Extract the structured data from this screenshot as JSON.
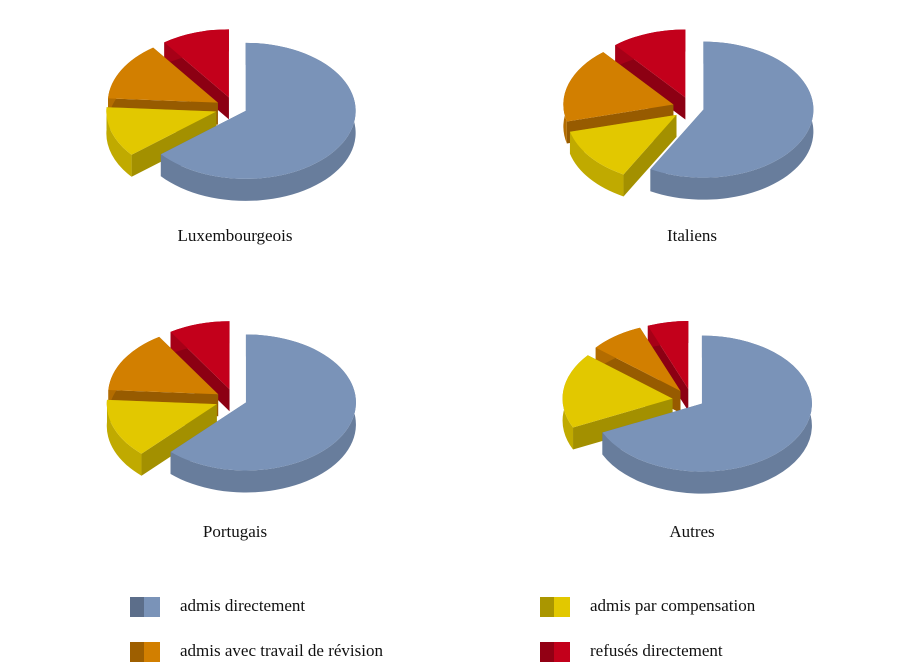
{
  "chart_data": {
    "type": "pie",
    "categories": [
      "admis directement",
      "admis par compensation",
      "admis avec travail de révision",
      "refusés directement"
    ],
    "colors": [
      "#7a93b8",
      "#e2c800",
      "#d27f00",
      "#c3001b"
    ],
    "pies": [
      {
        "title": "Luxembourgeois",
        "values": [
          64,
          12,
          14,
          10
        ]
      },
      {
        "title": "Italiens",
        "values": [
          58,
          13,
          18,
          11
        ]
      },
      {
        "title": "Portugais",
        "values": [
          62,
          14,
          15,
          9
        ]
      },
      {
        "title": "Autres",
        "values": [
          68,
          18,
          8,
          6
        ]
      }
    ]
  }
}
